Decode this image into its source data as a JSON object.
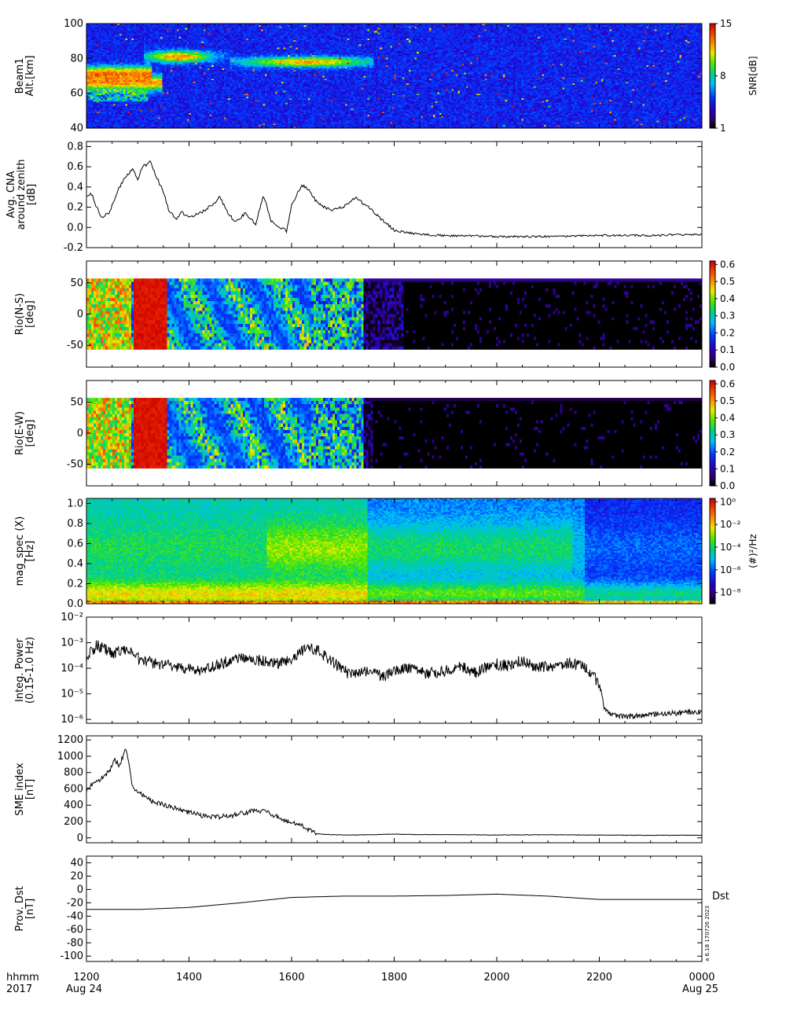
{
  "time_axis": {
    "ticks": [
      "1200",
      "1400",
      "1600",
      "1800",
      "2000",
      "2200",
      "0000"
    ],
    "hours": [
      12,
      14,
      16,
      18,
      20,
      22,
      24
    ],
    "range": [
      12,
      24
    ],
    "label_line1": "hhmm",
    "label_line2": "2017",
    "date_start": "Aug 24",
    "date_end": "Aug 25"
  },
  "stamp": "a 6.18 170726 2023",
  "chart_data": [
    {
      "id": "beam1",
      "type": "heatmap",
      "ylabel": [
        "Beam1",
        "Alt.[km]"
      ],
      "ylim": [
        40,
        100
      ],
      "yticks": [
        "40",
        "60",
        "80",
        "100"
      ],
      "ytick_values": [
        40,
        60,
        80,
        100
      ],
      "colorbar": {
        "title": "SNR[dB]",
        "range": [
          1,
          15
        ],
        "ticks": [
          "1",
          "8",
          "15"
        ],
        "tick_values": [
          1,
          8,
          15
        ]
      },
      "notes": "Enhanced SNR layers near 60-75 km (12:00-13:30) and 75-82 km (13:30-17:30)"
    },
    {
      "id": "cna",
      "type": "line",
      "ylabel": [
        "Avg. CNA",
        "around zenith",
        "[dB]"
      ],
      "ylim": [
        -0.2,
        0.85
      ],
      "yticks": [
        "-0.2",
        "0.0",
        "0.2",
        "0.4",
        "0.6",
        "0.8"
      ],
      "ytick_values": [
        -0.2,
        0.0,
        0.2,
        0.4,
        0.6,
        0.8
      ],
      "x": [
        12.0,
        12.1,
        12.2,
        12.3,
        12.45,
        12.6,
        12.75,
        12.9,
        13.0,
        13.1,
        13.25,
        13.35,
        13.5,
        13.6,
        13.75,
        13.85,
        14.0,
        14.25,
        14.5,
        14.6,
        14.75,
        14.9,
        15.1,
        15.3,
        15.45,
        15.6,
        15.9,
        16.0,
        16.2,
        16.35,
        16.5,
        16.75,
        17.0,
        17.25,
        17.5,
        17.75,
        18.0,
        18.5,
        19.0,
        20.0,
        21.0,
        22.0,
        23.0,
        24.0
      ],
      "y": [
        0.32,
        0.33,
        0.2,
        0.1,
        0.15,
        0.35,
        0.5,
        0.58,
        0.48,
        0.6,
        0.65,
        0.52,
        0.35,
        0.18,
        0.08,
        0.15,
        0.1,
        0.15,
        0.24,
        0.3,
        0.15,
        0.05,
        0.14,
        0.03,
        0.32,
        0.07,
        -0.04,
        0.22,
        0.42,
        0.36,
        0.24,
        0.17,
        0.2,
        0.29,
        0.2,
        0.08,
        -0.03,
        -0.07,
        -0.08,
        -0.09,
        -0.09,
        -0.08,
        -0.08,
        -0.07
      ]
    },
    {
      "id": "rio_ns",
      "type": "heatmap",
      "ylabel": [
        "Rio(N-S)",
        "[deg]"
      ],
      "ylim": [
        -85,
        85
      ],
      "yticks": [
        "-50",
        "0",
        "50"
      ],
      "ytick_values": [
        -50,
        0,
        50
      ],
      "colorbar": {
        "range": [
          0,
          0.62
        ],
        "ticks": [
          "0.0",
          "0.1",
          "0.2",
          "0.3",
          "0.4",
          "0.5",
          "0.6"
        ],
        "tick_values": [
          0,
          0.1,
          0.2,
          0.3,
          0.4,
          0.5,
          0.6
        ]
      }
    },
    {
      "id": "rio_ew",
      "type": "heatmap",
      "ylabel": [
        "Rio(E-W)",
        "[deg]"
      ],
      "ylim": [
        -85,
        85
      ],
      "yticks": [
        "-50",
        "0",
        "50"
      ],
      "ytick_values": [
        -50,
        0,
        50
      ],
      "colorbar": {
        "range": [
          0,
          0.62
        ],
        "ticks": [
          "0.0",
          "0.1",
          "0.2",
          "0.3",
          "0.4",
          "0.5",
          "0.6"
        ],
        "tick_values": [
          0,
          0.1,
          0.2,
          0.3,
          0.4,
          0.5,
          0.6
        ]
      }
    },
    {
      "id": "mag_spec",
      "type": "heatmap",
      "ylabel": [
        "mag_spec (X)",
        "[Hz]"
      ],
      "ylim": [
        0,
        1.05
      ],
      "yticks": [
        "0.0",
        "0.2",
        "0.4",
        "0.6",
        "0.8",
        "1.0"
      ],
      "ytick_values": [
        0,
        0.2,
        0.4,
        0.6,
        0.8,
        1.0
      ],
      "colorbar": {
        "title": "(#)²/Hz",
        "log": true,
        "range": [
          -9,
          0.3
        ],
        "ticks": [
          "10⁰",
          "10⁻²",
          "10⁻⁴",
          "10⁻⁶",
          "10⁻⁸"
        ],
        "tick_values": [
          0,
          -2,
          -4,
          -6,
          -8
        ]
      }
    },
    {
      "id": "integ_power",
      "type": "line",
      "log_y": true,
      "ylabel": [
        "Integ. Power",
        "(0.15-1.0 Hz)"
      ],
      "ylim_log10": [
        -6.15,
        -2
      ],
      "yticks": [
        "10⁻²",
        "10⁻³",
        "10⁻⁴",
        "10⁻⁵",
        "10⁻⁶"
      ],
      "ytick_values": [
        -2,
        -3,
        -4,
        -5,
        -6
      ],
      "x": [
        12.0,
        12.2,
        12.5,
        12.8,
        13.0,
        13.3,
        13.6,
        13.9,
        14.2,
        14.5,
        14.8,
        15.0,
        15.4,
        15.8,
        16.0,
        16.3,
        16.5,
        16.7,
        16.9,
        17.1,
        17.5,
        17.8,
        18.0,
        18.3,
        18.6,
        19.0,
        19.3,
        19.6,
        19.9,
        20.2,
        20.5,
        20.8,
        21.1,
        21.4,
        21.7,
        22.0,
        22.1,
        22.2,
        22.5,
        23.0,
        23.5,
        24.0
      ],
      "y": [
        -3.6,
        -3.1,
        -3.4,
        -3.3,
        -3.6,
        -3.8,
        -3.9,
        -4.0,
        -4.1,
        -3.9,
        -3.7,
        -3.6,
        -3.7,
        -3.8,
        -3.6,
        -3.2,
        -3.3,
        -3.6,
        -3.9,
        -4.2,
        -4.1,
        -4.3,
        -4.1,
        -4.0,
        -4.2,
        -4.1,
        -3.9,
        -4.2,
        -3.8,
        -3.9,
        -3.7,
        -4.0,
        -3.9,
        -3.8,
        -3.9,
        -4.6,
        -5.6,
        -5.8,
        -5.9,
        -5.8,
        -5.75,
        -5.7
      ]
    },
    {
      "id": "sme",
      "type": "line",
      "ylabel": [
        "SME index",
        "[nT]"
      ],
      "ylim": [
        -60,
        1250
      ],
      "yticks": [
        "0",
        "200",
        "400",
        "600",
        "800",
        "1000",
        "1200"
      ],
      "ytick_values": [
        0,
        200,
        400,
        600,
        800,
        1000,
        1200
      ],
      "x": [
        12.0,
        12.1,
        12.2,
        12.3,
        12.45,
        12.55,
        12.65,
        12.75,
        12.8,
        12.9,
        13.0,
        13.3,
        13.6,
        13.9,
        14.2,
        14.5,
        14.8,
        15.0,
        15.25,
        15.5,
        15.75,
        16.0,
        16.2,
        16.35,
        16.5,
        16.7,
        17.0,
        17.5,
        18.0,
        18.5,
        19.0,
        20.0,
        21.0,
        22.0,
        23.0,
        24.0
      ],
      "y": [
        560,
        650,
        700,
        730,
        820,
        960,
        880,
        1080,
        1020,
        620,
        560,
        440,
        390,
        330,
        280,
        250,
        270,
        300,
        330,
        320,
        250,
        180,
        150,
        100,
        50,
        40,
        35,
        38,
        45,
        40,
        40,
        35,
        38,
        34,
        32,
        33
      ]
    },
    {
      "id": "dst",
      "type": "line",
      "ylabel": [
        "Prov. Dst",
        "[nT]"
      ],
      "series_label": "Dst",
      "ylim": [
        -108,
        50
      ],
      "yticks": [
        "-100",
        "-80",
        "-60",
        "-40",
        "-20",
        "0",
        "20",
        "40"
      ],
      "ytick_values": [
        -100,
        -80,
        -60,
        -40,
        -20,
        0,
        20,
        40
      ],
      "x": [
        12,
        13,
        14,
        15,
        16,
        17,
        18,
        19,
        20,
        21,
        22,
        23,
        24
      ],
      "y": [
        -30,
        -30,
        -27,
        -20,
        -12,
        -10,
        -10,
        -9,
        -7,
        -10,
        -15,
        -15,
        -15
      ]
    }
  ]
}
